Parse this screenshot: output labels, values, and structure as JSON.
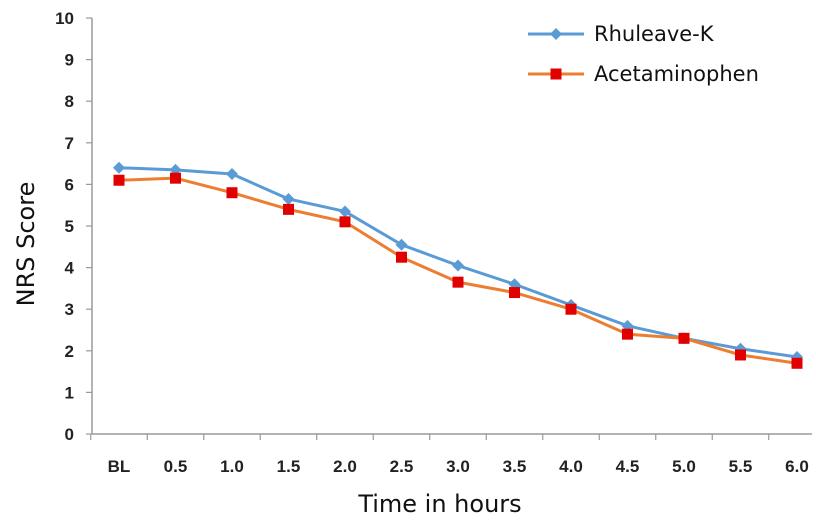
{
  "chart_data": {
    "type": "line",
    "xlabel": "Time in hours",
    "ylabel": "NRS Score",
    "categories": [
      "BL",
      "0.5",
      "1.0",
      "1.5",
      "2.0",
      "2.5",
      "3.0",
      "3.5",
      "4.0",
      "4.5",
      "5.0",
      "5.5",
      "6.0"
    ],
    "ylim": [
      0,
      10
    ],
    "yticks": [
      "0",
      "1",
      "2",
      "3",
      "4",
      "5",
      "6",
      "7",
      "8",
      "9",
      "10"
    ],
    "grid": false,
    "legend_position": "top-right",
    "series": [
      {
        "name": "Rhuleave-K",
        "color": "#5b9bd5",
        "marker": "diamond",
        "values": [
          6.4,
          6.35,
          6.25,
          5.65,
          5.35,
          4.55,
          4.05,
          3.6,
          3.1,
          2.6,
          2.3,
          2.05,
          1.85
        ]
      },
      {
        "name": "Acetaminophen",
        "color": "#ed7d31",
        "marker_color": "#e00000",
        "marker": "square",
        "values": [
          6.1,
          6.15,
          5.8,
          5.4,
          5.1,
          4.25,
          3.65,
          3.4,
          3.0,
          2.4,
          2.3,
          1.9,
          1.7
        ]
      }
    ]
  }
}
